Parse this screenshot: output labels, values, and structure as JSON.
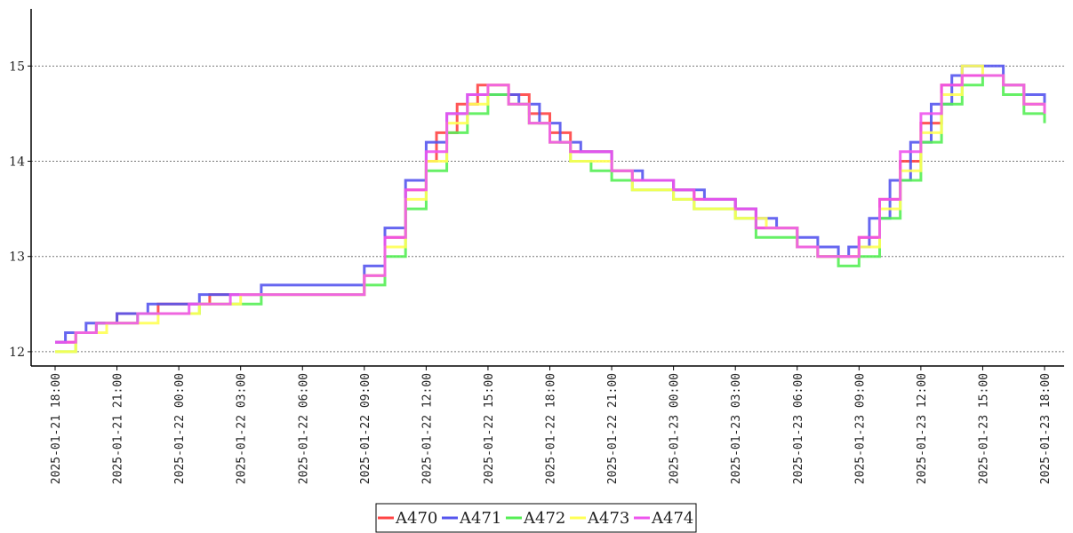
{
  "chart_data": {
    "type": "line",
    "step": true,
    "title": "",
    "xlabel": "",
    "ylabel": "",
    "ylim": [
      11.85,
      15.6
    ],
    "yticks": [
      12,
      13,
      14,
      15
    ],
    "grid": "horizontal dotted",
    "legend_position": "bottom-center",
    "x_ticks": [
      "2025-01-21 18:00",
      "2025-01-21 21:00",
      "2025-01-22 00:00",
      "2025-01-22 03:00",
      "2025-01-22 06:00",
      "2025-01-22 09:00",
      "2025-01-22 12:00",
      "2025-01-22 15:00",
      "2025-01-22 18:00",
      "2025-01-22 21:00",
      "2025-01-23 00:00",
      "2025-01-23 03:00",
      "2025-01-23 06:00",
      "2025-01-23 09:00",
      "2025-01-23 12:00",
      "2025-01-23 15:00",
      "2025-01-23 18:00"
    ],
    "series": [
      {
        "name": "A470",
        "color": "#ff4444",
        "points": [
          [
            "2025-01-21 18:00",
            12.1
          ],
          [
            "2025-01-21 19:00",
            12.2
          ],
          [
            "2025-01-21 20:00",
            12.3
          ],
          [
            "2025-01-21 21:00",
            12.4
          ],
          [
            "2025-01-21 23:00",
            12.5
          ],
          [
            "2025-01-22 01:30",
            12.6
          ],
          [
            "2025-01-22 09:00",
            12.8
          ],
          [
            "2025-01-22 10:00",
            13.2
          ],
          [
            "2025-01-22 11:00",
            13.7
          ],
          [
            "2025-01-22 12:00",
            14.0
          ],
          [
            "2025-01-22 12:30",
            14.3
          ],
          [
            "2025-01-22 13:30",
            14.6
          ],
          [
            "2025-01-22 14:30",
            14.8
          ],
          [
            "2025-01-22 16:00",
            14.7
          ],
          [
            "2025-01-22 17:00",
            14.5
          ],
          [
            "2025-01-22 18:00",
            14.3
          ],
          [
            "2025-01-22 19:00",
            14.1
          ],
          [
            "2025-01-22 21:00",
            13.9
          ],
          [
            "2025-01-22 22:00",
            13.8
          ],
          [
            "2025-01-23 00:00",
            13.7
          ],
          [
            "2025-01-23 01:00",
            13.6
          ],
          [
            "2025-01-23 03:00",
            13.5
          ],
          [
            "2025-01-23 04:00",
            13.3
          ],
          [
            "2025-01-23 06:00",
            13.1
          ],
          [
            "2025-01-23 07:00",
            13.0
          ],
          [
            "2025-01-23 09:00",
            13.2
          ],
          [
            "2025-01-23 10:00",
            13.6
          ],
          [
            "2025-01-23 11:00",
            14.0
          ],
          [
            "2025-01-23 12:00",
            14.4
          ],
          [
            "2025-01-23 13:00",
            14.8
          ],
          [
            "2025-01-23 14:00",
            14.9
          ],
          [
            "2025-01-23 16:00",
            14.8
          ],
          [
            "2025-01-23 17:00",
            14.6
          ],
          [
            "2025-01-23 18:00",
            14.5
          ]
        ]
      },
      {
        "name": "A471",
        "color": "#5555ee",
        "points": [
          [
            "2025-01-21 18:00",
            12.1
          ],
          [
            "2025-01-21 18:30",
            12.2
          ],
          [
            "2025-01-21 19:30",
            12.3
          ],
          [
            "2025-01-21 21:00",
            12.4
          ],
          [
            "2025-01-21 22:30",
            12.5
          ],
          [
            "2025-01-22 01:00",
            12.6
          ],
          [
            "2025-01-22 04:00",
            12.7
          ],
          [
            "2025-01-22 09:00",
            12.9
          ],
          [
            "2025-01-22 10:00",
            13.3
          ],
          [
            "2025-01-22 11:00",
            13.8
          ],
          [
            "2025-01-22 12:00",
            14.2
          ],
          [
            "2025-01-22 13:00",
            14.5
          ],
          [
            "2025-01-22 14:00",
            14.7
          ],
          [
            "2025-01-22 15:30",
            14.7
          ],
          [
            "2025-01-22 16:30",
            14.6
          ],
          [
            "2025-01-22 17:30",
            14.4
          ],
          [
            "2025-01-22 18:30",
            14.2
          ],
          [
            "2025-01-22 19:30",
            14.1
          ],
          [
            "2025-01-22 21:00",
            13.9
          ],
          [
            "2025-01-22 22:30",
            13.8
          ],
          [
            "2025-01-23 00:00",
            13.7
          ],
          [
            "2025-01-23 01:30",
            13.6
          ],
          [
            "2025-01-23 03:00",
            13.5
          ],
          [
            "2025-01-23 04:00",
            13.4
          ],
          [
            "2025-01-23 05:00",
            13.3
          ],
          [
            "2025-01-23 06:00",
            13.2
          ],
          [
            "2025-01-23 07:00",
            13.1
          ],
          [
            "2025-01-23 08:00",
            13.0
          ],
          [
            "2025-01-23 08:30",
            13.1
          ],
          [
            "2025-01-23 09:30",
            13.4
          ],
          [
            "2025-01-23 10:30",
            13.8
          ],
          [
            "2025-01-23 11:30",
            14.2
          ],
          [
            "2025-01-23 12:30",
            14.6
          ],
          [
            "2025-01-23 13:30",
            14.9
          ],
          [
            "2025-01-23 14:00",
            15.0
          ],
          [
            "2025-01-23 16:00",
            14.8
          ],
          [
            "2025-01-23 17:00",
            14.7
          ],
          [
            "2025-01-23 18:00",
            14.6
          ]
        ]
      },
      {
        "name": "A472",
        "color": "#55ee55",
        "points": [
          [
            "2025-01-21 18:00",
            12.0
          ],
          [
            "2025-01-21 19:00",
            12.2
          ],
          [
            "2025-01-21 20:00",
            12.3
          ],
          [
            "2025-01-21 22:00",
            12.4
          ],
          [
            "2025-01-22 01:00",
            12.5
          ],
          [
            "2025-01-22 04:00",
            12.6
          ],
          [
            "2025-01-22 09:00",
            12.7
          ],
          [
            "2025-01-22 10:00",
            13.0
          ],
          [
            "2025-01-22 11:00",
            13.5
          ],
          [
            "2025-01-22 12:00",
            13.9
          ],
          [
            "2025-01-22 13:00",
            14.3
          ],
          [
            "2025-01-22 14:00",
            14.5
          ],
          [
            "2025-01-22 15:00",
            14.7
          ],
          [
            "2025-01-22 16:00",
            14.6
          ],
          [
            "2025-01-22 17:00",
            14.4
          ],
          [
            "2025-01-22 18:00",
            14.2
          ],
          [
            "2025-01-22 19:00",
            14.0
          ],
          [
            "2025-01-22 20:00",
            13.9
          ],
          [
            "2025-01-22 21:00",
            13.8
          ],
          [
            "2025-01-22 22:00",
            13.7
          ],
          [
            "2025-01-23 00:00",
            13.6
          ],
          [
            "2025-01-23 01:00",
            13.5
          ],
          [
            "2025-01-23 03:00",
            13.4
          ],
          [
            "2025-01-23 04:00",
            13.2
          ],
          [
            "2025-01-23 06:00",
            13.1
          ],
          [
            "2025-01-23 07:00",
            13.0
          ],
          [
            "2025-01-23 08:00",
            12.9
          ],
          [
            "2025-01-23 09:00",
            13.0
          ],
          [
            "2025-01-23 10:00",
            13.4
          ],
          [
            "2025-01-23 11:00",
            13.8
          ],
          [
            "2025-01-23 12:00",
            14.2
          ],
          [
            "2025-01-23 13:00",
            14.6
          ],
          [
            "2025-01-23 14:00",
            14.8
          ],
          [
            "2025-01-23 15:00",
            14.9
          ],
          [
            "2025-01-23 16:00",
            14.7
          ],
          [
            "2025-01-23 17:00",
            14.5
          ],
          [
            "2025-01-23 18:00",
            14.4
          ]
        ]
      },
      {
        "name": "A473",
        "color": "#ffff55",
        "points": [
          [
            "2025-01-21 18:00",
            12.0
          ],
          [
            "2025-01-21 19:00",
            12.2
          ],
          [
            "2025-01-21 20:30",
            12.3
          ],
          [
            "2025-01-21 23:00",
            12.4
          ],
          [
            "2025-01-22 01:00",
            12.5
          ],
          [
            "2025-01-22 03:00",
            12.6
          ],
          [
            "2025-01-22 09:00",
            12.8
          ],
          [
            "2025-01-22 10:00",
            13.1
          ],
          [
            "2025-01-22 11:00",
            13.6
          ],
          [
            "2025-01-22 12:00",
            14.0
          ],
          [
            "2025-01-22 13:00",
            14.4
          ],
          [
            "2025-01-22 14:00",
            14.6
          ],
          [
            "2025-01-22 15:00",
            14.8
          ],
          [
            "2025-01-22 16:00",
            14.6
          ],
          [
            "2025-01-22 17:00",
            14.4
          ],
          [
            "2025-01-22 18:00",
            14.2
          ],
          [
            "2025-01-22 19:00",
            14.0
          ],
          [
            "2025-01-22 21:00",
            13.9
          ],
          [
            "2025-01-22 22:00",
            13.7
          ],
          [
            "2025-01-23 00:00",
            13.6
          ],
          [
            "2025-01-23 01:00",
            13.5
          ],
          [
            "2025-01-23 03:00",
            13.4
          ],
          [
            "2025-01-23 04:30",
            13.3
          ],
          [
            "2025-01-23 06:00",
            13.1
          ],
          [
            "2025-01-23 07:00",
            13.0
          ],
          [
            "2025-01-23 09:00",
            13.1
          ],
          [
            "2025-01-23 10:00",
            13.5
          ],
          [
            "2025-01-23 11:00",
            13.9
          ],
          [
            "2025-01-23 12:00",
            14.3
          ],
          [
            "2025-01-23 13:00",
            14.7
          ],
          [
            "2025-01-23 14:00",
            15.0
          ],
          [
            "2025-01-23 15:00",
            14.9
          ],
          [
            "2025-01-23 16:00",
            14.8
          ],
          [
            "2025-01-23 17:00",
            14.6
          ],
          [
            "2025-01-23 18:00",
            14.5
          ]
        ]
      },
      {
        "name": "A474",
        "color": "#ee55ee",
        "points": [
          [
            "2025-01-21 18:00",
            12.1
          ],
          [
            "2025-01-21 19:00",
            12.2
          ],
          [
            "2025-01-21 20:00",
            12.3
          ],
          [
            "2025-01-21 22:00",
            12.4
          ],
          [
            "2025-01-22 00:30",
            12.5
          ],
          [
            "2025-01-22 02:30",
            12.6
          ],
          [
            "2025-01-22 09:00",
            12.8
          ],
          [
            "2025-01-22 10:00",
            13.2
          ],
          [
            "2025-01-22 11:00",
            13.7
          ],
          [
            "2025-01-22 12:00",
            14.1
          ],
          [
            "2025-01-22 13:00",
            14.5
          ],
          [
            "2025-01-22 14:00",
            14.7
          ],
          [
            "2025-01-22 15:00",
            14.8
          ],
          [
            "2025-01-22 16:00",
            14.6
          ],
          [
            "2025-01-22 17:00",
            14.4
          ],
          [
            "2025-01-22 18:00",
            14.2
          ],
          [
            "2025-01-22 19:00",
            14.1
          ],
          [
            "2025-01-22 21:00",
            13.9
          ],
          [
            "2025-01-22 22:00",
            13.8
          ],
          [
            "2025-01-23 00:00",
            13.7
          ],
          [
            "2025-01-23 01:00",
            13.6
          ],
          [
            "2025-01-23 03:00",
            13.5
          ],
          [
            "2025-01-23 04:00",
            13.3
          ],
          [
            "2025-01-23 06:00",
            13.1
          ],
          [
            "2025-01-23 07:00",
            13.0
          ],
          [
            "2025-01-23 09:00",
            13.2
          ],
          [
            "2025-01-23 10:00",
            13.6
          ],
          [
            "2025-01-23 11:00",
            14.1
          ],
          [
            "2025-01-23 12:00",
            14.5
          ],
          [
            "2025-01-23 13:00",
            14.8
          ],
          [
            "2025-01-23 14:00",
            14.9
          ],
          [
            "2025-01-23 16:00",
            14.8
          ],
          [
            "2025-01-23 17:00",
            14.6
          ],
          [
            "2025-01-23 18:00",
            14.5
          ]
        ]
      }
    ]
  }
}
